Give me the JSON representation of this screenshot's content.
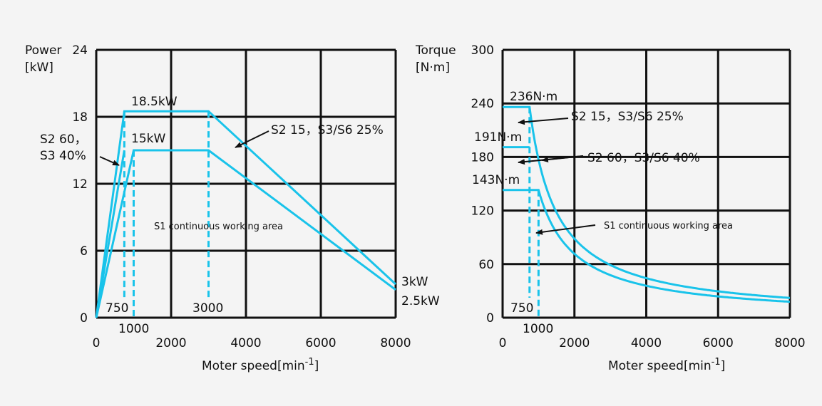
{
  "chart_data": [
    {
      "type": "line",
      "ylabel_lines": [
        "Power",
        "[kW]"
      ],
      "xlabel": "Moter speed[min",
      "xlabel_sup": "-1",
      "xlabel_end": "]",
      "xlim": [
        0,
        8000
      ],
      "ylim": [
        0,
        24
      ],
      "x_ticks": [
        0,
        2000,
        4000,
        6000,
        8000
      ],
      "y_ticks": [
        0,
        6,
        12,
        18,
        24
      ],
      "grid": true,
      "series": [
        {
          "name": "S2 15，S3/S6 25%",
          "x": [
            0,
            750,
            3000,
            8000
          ],
          "y": [
            0,
            18.5,
            18.5,
            3
          ]
        },
        {
          "name": "S2 60，S3 40%",
          "x": [
            0,
            750
          ],
          "y": [
            0,
            15
          ]
        },
        {
          "name": "S1 continuous working area",
          "x": [
            0,
            1000,
            3000,
            8000
          ],
          "y": [
            0,
            15,
            15,
            2.5
          ]
        }
      ],
      "reference_lines_x": [
        750,
        1000,
        3000
      ],
      "extra_x_labels": [
        "750",
        "1000",
        "3000"
      ],
      "annotations": [
        "18.5kW",
        "15kW",
        "S2 15，S3/S6 25%",
        "S2 60，",
        "S3 40%",
        "S1 continuous working area",
        "3kW",
        "2.5kW"
      ]
    },
    {
      "type": "line",
      "ylabel_lines": [
        "Torque",
        "[N·m]"
      ],
      "xlabel": "Moter speed[min",
      "xlabel_sup": "-1",
      "xlabel_end": "]",
      "xlim": [
        0,
        8000
      ],
      "ylim": [
        0,
        300
      ],
      "x_ticks": [
        0,
        2000,
        4000,
        6000,
        8000
      ],
      "y_ticks": [
        0,
        60,
        120,
        180,
        240,
        300
      ],
      "grid": true,
      "series": [
        {
          "name": "S2 15，S3/S6 25%",
          "rated_torque": 236,
          "base_speed": 750,
          "max_speed": 8000
        },
        {
          "name": "S2 60，S3/S6 40%",
          "rated_torque": 191,
          "base_speed": 750,
          "max_speed": 8000
        },
        {
          "name": "S1 continuous working area",
          "rated_torque": 143,
          "base_speed": 1000,
          "max_speed": 8000
        }
      ],
      "reference_lines_x": [
        750,
        1000
      ],
      "extra_x_labels": [
        "750",
        "1000"
      ],
      "annotations": [
        "236N·m",
        "191N·m",
        "143N·m",
        "S2 15，S3/S6 25%",
        "S2 60，S3/S6 40%",
        "S1 continuous working area"
      ]
    }
  ]
}
